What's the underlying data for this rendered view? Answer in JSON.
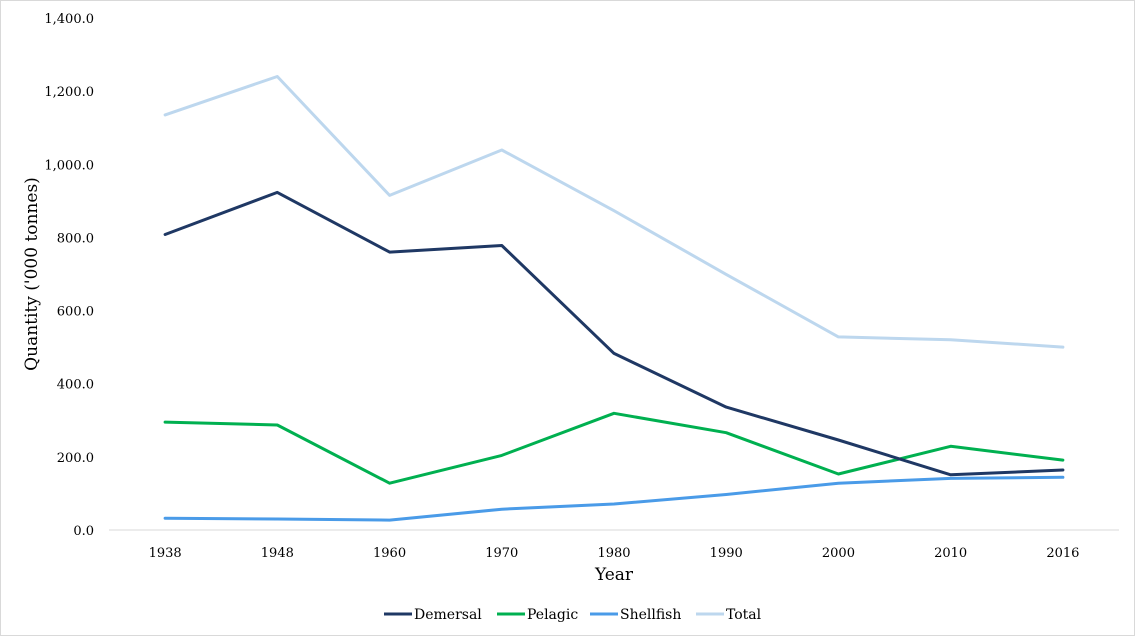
{
  "chart_data": {
    "type": "line",
    "title": "",
    "xlabel": "Year",
    "ylabel": "Quantity ('000 tonnes)",
    "categories": [
      "1938",
      "1948",
      "1960",
      "1970",
      "1980",
      "1990",
      "2000",
      "2010",
      "2016"
    ],
    "y_ticks": [
      "0.0",
      "200.0",
      "400.0",
      "600.0",
      "800.0",
      "1,000.0",
      "1,200.0",
      "1,400.0"
    ],
    "ylim": [
      0,
      1400
    ],
    "grid": false,
    "legend_position": "bottom",
    "series": [
      {
        "name": "Demersal",
        "color": "#1f3864",
        "values": [
          808,
          923,
          760,
          778,
          483,
          336,
          246,
          151,
          164
        ]
      },
      {
        "name": "Pelagic",
        "color": "#00b050",
        "values": [
          295,
          287,
          128,
          204,
          319,
          266,
          153,
          229,
          191
        ]
      },
      {
        "name": "Shellfish",
        "color": "#4a9be8",
        "values": [
          32,
          30,
          27,
          57,
          71,
          97,
          128,
          141,
          144
        ]
      },
      {
        "name": "Total",
        "color": "#bdd7ee",
        "values": [
          1135,
          1240,
          915,
          1039,
          873,
          699,
          528,
          520,
          500
        ]
      }
    ]
  }
}
